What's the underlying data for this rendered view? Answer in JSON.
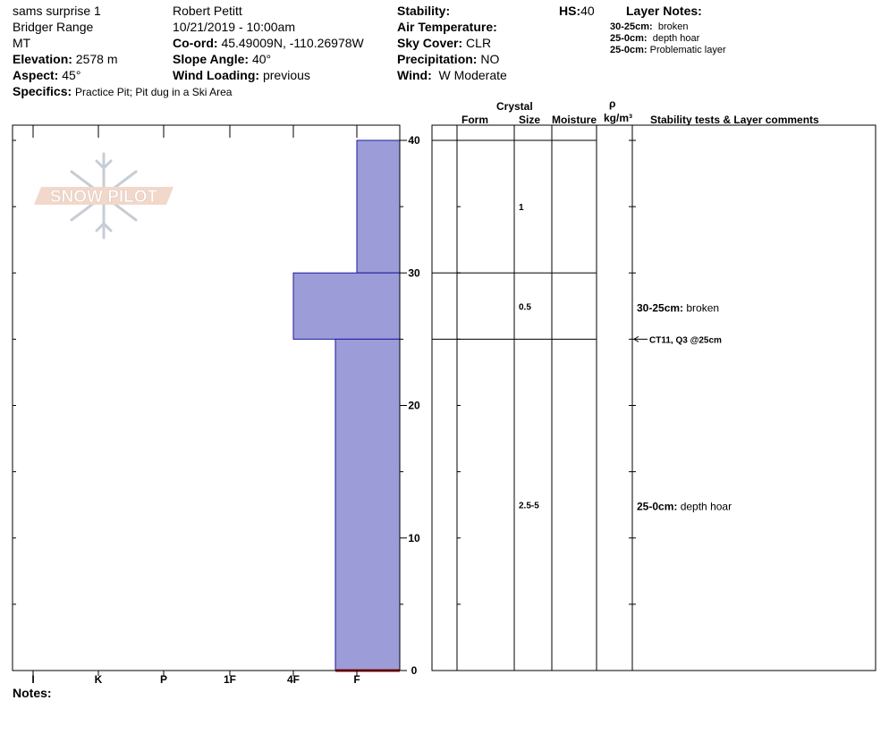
{
  "header": {
    "col1": {
      "pit_name": "sams surprise 1",
      "range": "Bridger Range",
      "state": "MT",
      "elevation_label": "Elevation:",
      "elevation_value": "2578 m",
      "aspect_label": "Aspect:",
      "aspect_value": "45°",
      "specifics_label": "Specifics:",
      "specifics_value": "Practice Pit; Pit dug in a Ski Area"
    },
    "col2": {
      "observer": "Robert Petitt",
      "datetime": "10/21/2019 - 10:00am",
      "coord_label": "Co-ord:",
      "coord_value": "45.49009N, -110.26978W",
      "slope_label": "Slope Angle:",
      "slope_value": "40°",
      "wind_loading_label": "Wind Loading:",
      "wind_loading_value": "previous"
    },
    "col3": {
      "stability_label": "Stability:",
      "air_temp_label": "Air Temperature:",
      "sky_label": "Sky Cover:",
      "sky_value": "CLR",
      "precip_label": "Precipitation:",
      "precip_value": "NO",
      "wind_label": "Wind:",
      "wind_value": "W Moderate"
    },
    "hs_label": "HS:",
    "hs_value": "40",
    "layer_notes_label": "Layer Notes:",
    "layer_notes": [
      {
        "range": "30-25cm:",
        "text": "broken"
      },
      {
        "range": "25-0cm:",
        "text": "depth hoar"
      },
      {
        "range": "25-0cm:",
        "text": "Problematic layer"
      }
    ]
  },
  "logo_text": "SNOW PILOT",
  "notes_label": "Notes:",
  "table_headers": {
    "crystal": "Crystal",
    "form": "Form",
    "size": "Size",
    "moisture": "Moisture",
    "rho": "ρ",
    "density_unit": "kg/m³",
    "stability": "Stability tests & Layer comments"
  },
  "colors": {
    "hardness_fill": "#9c9cd8",
    "hardness_stroke": "#1a1aa0",
    "ground_line": "#a01010"
  },
  "chart_data": {
    "type": "bar",
    "hardness_ticks": [
      "I",
      "K",
      "P",
      "1F",
      "4F",
      "F"
    ],
    "depth_ticks": [
      0,
      10,
      20,
      30,
      40
    ],
    "depth_range": [
      0,
      40
    ],
    "layers": [
      {
        "top": 40,
        "bottom": 30,
        "hardness": "F",
        "size": "1",
        "comment_range": "",
        "comment": ""
      },
      {
        "top": 30,
        "bottom": 25,
        "hardness": "4F",
        "size": "0.5",
        "comment_range": "30-25cm:",
        "comment": "broken"
      },
      {
        "top": 25,
        "bottom": 0,
        "hardness": "F-",
        "size": "2.5-5",
        "comment_range": "25-0cm:",
        "comment": "depth hoar"
      }
    ],
    "stability_test": {
      "depth": 25,
      "text": "CT11, Q3 @25cm"
    }
  }
}
